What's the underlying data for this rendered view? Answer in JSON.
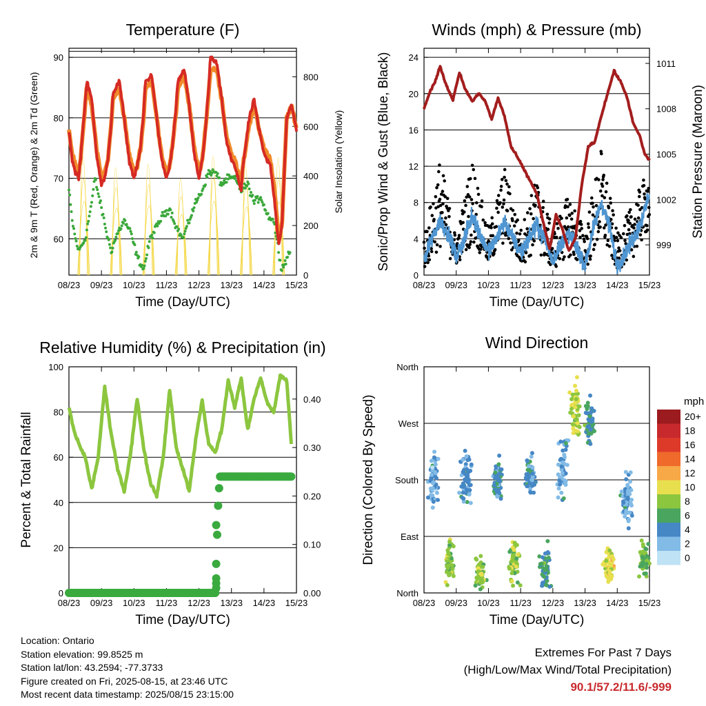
{
  "colors": {
    "temp_2m": "#d62a24",
    "temp_9m": "#f08a2a",
    "dewpoint": "#3aa83a",
    "solar": "#f4d84a",
    "wind": "#4f96d2",
    "gust": "#000000",
    "pressure": "#a31d1d",
    "rh": "#8cc63f",
    "precip": "#3aaa3f",
    "extremes_text": "#c8292c"
  },
  "time_ticks": [
    "08/23",
    "09/23",
    "10/23",
    "11/23",
    "12/23",
    "13/23",
    "14/23",
    "15/23"
  ],
  "charts": [
    {
      "id": "temperature",
      "type": "line",
      "title": "Temperature (F)",
      "xlabel": "Time (Day/UTC)",
      "ylabel_left": "2m & 9m T (Red, Orange) & 2m Td (Green)",
      "ylabel_right": "Solar Insolation (Yellow)",
      "yleft_ticks": [
        "60",
        "70",
        "80",
        "90"
      ],
      "yright_ticks": [
        "0",
        "200",
        "400",
        "600",
        "800"
      ],
      "ylim_left": [
        54,
        91.5
      ],
      "ylim_right": [
        0,
        915
      ],
      "grid": "horizontal",
      "series": [
        {
          "name": "2m T",
          "x": [
            0,
            0.1,
            0.2,
            0.3,
            0.35,
            0.55,
            0.7,
            0.85,
            1.0,
            1.1,
            1.2,
            1.3,
            1.35,
            1.55,
            1.7,
            1.85,
            2.0,
            2.1,
            2.2,
            2.3,
            2.35,
            2.55,
            2.7,
            2.85,
            3.0,
            3.1,
            3.2,
            3.3,
            3.35,
            3.55,
            3.7,
            3.85,
            4.0,
            4.1,
            4.2,
            4.3,
            4.35,
            4.55,
            4.7,
            4.85,
            5.0,
            5.1,
            5.2,
            5.3,
            5.35,
            5.55,
            5.7,
            5.85,
            6.0,
            6.2,
            6.35,
            6.45,
            6.55,
            6.7,
            6.85,
            7.0
          ],
          "y": [
            78,
            73,
            71,
            70,
            73,
            86,
            83,
            74,
            69,
            70,
            73,
            79,
            84,
            86,
            80,
            73,
            70,
            72,
            75,
            81,
            86,
            87,
            80,
            73,
            70,
            72,
            76,
            82,
            86,
            88,
            82,
            74,
            70,
            73,
            78,
            85,
            90,
            89,
            83,
            76,
            73,
            72,
            70,
            68,
            72,
            80,
            83,
            78,
            74,
            72,
            65,
            59,
            62,
            80,
            82,
            78
          ]
        },
        {
          "name": "9m T",
          "x": [
            0,
            0.1,
            0.2,
            0.3,
            0.35,
            0.55,
            0.7,
            0.85,
            1.0,
            1.1,
            1.2,
            1.3,
            1.35,
            1.55,
            1.7,
            1.85,
            2.0,
            2.1,
            2.2,
            2.3,
            2.35,
            2.55,
            2.7,
            2.85,
            3.0,
            3.1,
            3.2,
            3.3,
            3.35,
            3.55,
            3.7,
            3.85,
            4.0,
            4.1,
            4.2,
            4.3,
            4.35,
            4.55,
            4.7,
            4.85,
            5.0,
            5.1,
            5.2,
            5.3,
            5.35,
            5.55,
            5.7,
            5.85,
            6.0,
            6.2,
            6.35,
            6.45,
            6.55,
            6.7,
            6.85,
            7.0
          ],
          "y": [
            78,
            74,
            72,
            71,
            73,
            85,
            82,
            75,
            70,
            71,
            73,
            79,
            83,
            85,
            80,
            74,
            71,
            72,
            75,
            80,
            85,
            86,
            80,
            74,
            71,
            72,
            76,
            81,
            85,
            87,
            82,
            75,
            71,
            73,
            78,
            84,
            88,
            88,
            83,
            77,
            74,
            73,
            71,
            69,
            72,
            79,
            82,
            78,
            75,
            73,
            67,
            60,
            62,
            80,
            82,
            78
          ]
        },
        {
          "name": "2m Td",
          "x": [
            0,
            0.1,
            0.2,
            0.3,
            0.5,
            0.7,
            0.8,
            1.0,
            1.2,
            1.3,
            1.5,
            1.7,
            1.9,
            2.1,
            2.3,
            2.5,
            2.7,
            2.9,
            3.1,
            3.3,
            3.5,
            3.7,
            3.9,
            4.1,
            4.3,
            4.5,
            4.7,
            4.9,
            5.1,
            5.3,
            5.5,
            5.7,
            5.9,
            6.1,
            6.3,
            6.45,
            6.55,
            6.8
          ],
          "y": [
            68,
            63,
            60,
            58,
            60,
            66,
            70,
            65,
            60,
            58,
            61,
            63,
            61,
            57,
            55,
            60,
            62,
            64,
            65,
            62,
            60,
            63,
            66,
            68,
            71,
            71,
            69,
            70,
            70,
            68,
            69,
            66,
            67,
            64,
            63,
            58,
            55,
            58
          ]
        },
        {
          "name": "Solar",
          "peaks": [
            {
              "x": 0.45,
              "y": 895
            },
            {
              "x": 1.45,
              "y": 810
            },
            {
              "x": 2.45,
              "y": 840
            },
            {
              "x": 3.45,
              "y": 720
            },
            {
              "x": 4.45,
              "y": 900
            },
            {
              "x": 5.45,
              "y": 820
            },
            {
              "x": 6.45,
              "y": 890
            }
          ]
        }
      ]
    },
    {
      "id": "winds",
      "type": "scatter",
      "title": "Winds (mph) & Pressure (mb)",
      "xlabel": "Time (Day/UTC)",
      "ylabel_left": "Sonic/Prop Wind & Gust (Blue, Black)",
      "ylabel_right": "Station Pressure (Maroon)",
      "yleft_ticks": [
        "0",
        "4",
        "8",
        "12",
        "16",
        "20",
        "24"
      ],
      "yright_ticks": [
        "999",
        "1002",
        "1005",
        "1008",
        "1011"
      ],
      "ylim_left": [
        0,
        25
      ],
      "ylim_right": [
        997,
        1012
      ],
      "grid": "horizontal",
      "series": [
        {
          "name": "Pressure",
          "x": [
            0,
            0.2,
            0.35,
            0.5,
            0.7,
            0.9,
            1.1,
            1.3,
            1.5,
            1.7,
            1.9,
            2.1,
            2.3,
            2.5,
            2.7,
            2.9,
            3.1,
            3.3,
            3.5,
            3.7,
            3.9,
            4.1,
            4.3,
            4.5,
            4.7,
            4.9,
            5.1,
            5.3,
            5.5,
            5.7,
            5.9,
            6.1,
            6.3,
            6.5,
            6.7,
            6.85,
            7.0
          ],
          "y": [
            1008.0,
            1009.2,
            1009.8,
            1010.8,
            1009.5,
            1008.6,
            1010.4,
            1009.2,
            1008.5,
            1009.0,
            1008.5,
            1007.3,
            1008.7,
            1007.5,
            1005.5,
            1004.8,
            1004.0,
            1003.2,
            1002.4,
            1000.5,
            998.7,
            1001.0,
            1000.0,
            998.6,
            999.4,
            1003.0,
            1005.5,
            1005.8,
            1007.5,
            1009.0,
            1010.5,
            1009.8,
            1008.8,
            1007.0,
            1006.2,
            1005.0,
            1004.6
          ]
        },
        {
          "name": "Gust",
          "envelope": [
            {
              "x": 0.0,
              "lo": 0.5,
              "hi": 4.5
            },
            {
              "x": 0.5,
              "lo": 3.0,
              "hi": 13.0
            },
            {
              "x": 1.0,
              "lo": 1.0,
              "hi": 4.0
            },
            {
              "x": 1.5,
              "lo": 3.5,
              "hi": 13.0
            },
            {
              "x": 2.0,
              "lo": 1.0,
              "hi": 5.0
            },
            {
              "x": 2.5,
              "lo": 3.5,
              "hi": 12.0
            },
            {
              "x": 3.0,
              "lo": 1.0,
              "hi": 5.0
            },
            {
              "x": 3.5,
              "lo": 2.5,
              "hi": 11.0
            },
            {
              "x": 4.0,
              "lo": 0.5,
              "hi": 5.0
            },
            {
              "x": 4.5,
              "lo": 2.0,
              "hi": 9.0
            },
            {
              "x": 5.0,
              "lo": 0.5,
              "hi": 5.0
            },
            {
              "x": 5.5,
              "lo": 3.5,
              "hi": 14.0
            },
            {
              "x": 6.0,
              "lo": 0.5,
              "hi": 4.5
            },
            {
              "x": 6.5,
              "lo": 2.0,
              "hi": 8.0
            },
            {
              "x": 7.0,
              "lo": 5.0,
              "hi": 12.0
            }
          ]
        },
        {
          "name": "Wind",
          "x": [
            0.0,
            0.25,
            0.5,
            0.75,
            1.0,
            1.25,
            1.5,
            1.75,
            2.0,
            2.25,
            2.5,
            2.75,
            3.0,
            3.25,
            3.5,
            3.75,
            4.0,
            4.25,
            4.5,
            4.75,
            5.0,
            5.25,
            5.5,
            5.75,
            6.0,
            6.25,
            6.5,
            6.75,
            7.0
          ],
          "y": [
            1.5,
            4.0,
            6.0,
            4.5,
            2.0,
            4.0,
            6.5,
            4.5,
            2.5,
            4.0,
            6.0,
            4.0,
            2.5,
            4.0,
            5.5,
            4.0,
            1.5,
            3.5,
            4.5,
            3.0,
            1.0,
            5.0,
            8.0,
            5.5,
            1.0,
            2.5,
            4.0,
            6.0,
            9.0
          ]
        }
      ]
    },
    {
      "id": "humidity",
      "type": "line",
      "title": "Relative Humidity (%) & Precipitation (in)",
      "xlabel": "Time (Day/UTC)",
      "ylabel_left": "Percent & Total Rainfall",
      "yleft_ticks": [
        "0",
        "20",
        "40",
        "60",
        "80",
        "100"
      ],
      "yright_ticks": [
        "0.00",
        "0.10",
        "0.20",
        "0.30",
        "0.40"
      ],
      "ylim_left": [
        0,
        100
      ],
      "ylim_right": [
        0,
        0.4666
      ],
      "grid": "horizontal",
      "series": [
        {
          "name": "RH",
          "x": [
            0,
            0.15,
            0.3,
            0.5,
            0.7,
            0.9,
            1.1,
            1.3,
            1.5,
            1.7,
            1.9,
            2.1,
            2.3,
            2.5,
            2.7,
            2.9,
            3.1,
            3.3,
            3.5,
            3.7,
            3.9,
            4.1,
            4.3,
            4.5,
            4.7,
            4.9,
            5.1,
            5.3,
            5.5,
            5.7,
            5.9,
            6.1,
            6.3,
            6.5,
            6.7,
            6.85
          ],
          "y": [
            82,
            72,
            66,
            60,
            46,
            60,
            91,
            70,
            55,
            45,
            62,
            86,
            64,
            49,
            43,
            60,
            90,
            64,
            55,
            45,
            68,
            85,
            66,
            62,
            72,
            94,
            82,
            95,
            72,
            86,
            95,
            84,
            80,
            96,
            94,
            64
          ]
        },
        {
          "name": "Rainfall",
          "x": [
            0,
            4.5,
            4.55,
            4.6,
            4.65,
            7.0
          ],
          "y": [
            0.0,
            0.0,
            0.1,
            0.2,
            0.24,
            0.24
          ]
        }
      ]
    },
    {
      "id": "direction",
      "type": "scatter",
      "title": "Wind Direction",
      "xlabel": "Time (Day/UTC)",
      "ylabel_left": "Direction (Colored By Speed)",
      "yleft_ticks": [
        "North",
        "East",
        "South",
        "West",
        "North"
      ],
      "ylim_left": [
        0,
        360
      ],
      "grid": "horizontal",
      "legend": {
        "title": "mph",
        "placement": "right",
        "labels": [
          "20+",
          "18",
          "16",
          "14",
          "12",
          "10",
          "8",
          "6",
          "4",
          "2",
          "0"
        ],
        "colors": [
          "#9b1b1e",
          "#c8292c",
          "#dd3a2a",
          "#ef6a2b",
          "#f7a847",
          "#e8df4e",
          "#8cc63f",
          "#4aa55f",
          "#4687c5",
          "#82bbe6",
          "#bfe2f5"
        ]
      },
      "clusters": [
        {
          "x": 0.3,
          "dir": 180,
          "spread": 60,
          "speed": 3
        },
        {
          "x": 0.8,
          "dir": 50,
          "spread": 50,
          "speed": 8
        },
        {
          "x": 1.3,
          "dir": 180,
          "spread": 60,
          "speed": 4
        },
        {
          "x": 1.75,
          "dir": 30,
          "spread": 40,
          "speed": 8
        },
        {
          "x": 2.3,
          "dir": 180,
          "spread": 50,
          "speed": 4
        },
        {
          "x": 2.8,
          "dir": 50,
          "spread": 50,
          "speed": 8
        },
        {
          "x": 3.3,
          "dir": 185,
          "spread": 50,
          "speed": 4
        },
        {
          "x": 3.75,
          "dir": 40,
          "spread": 50,
          "speed": 5
        },
        {
          "x": 4.3,
          "dir": 200,
          "spread": 80,
          "speed": 3
        },
        {
          "x": 4.7,
          "dir": 290,
          "spread": 70,
          "speed": 9
        },
        {
          "x": 5.15,
          "dir": 270,
          "spread": 50,
          "speed": 5
        },
        {
          "x": 5.75,
          "dir": 45,
          "spread": 40,
          "speed": 10
        },
        {
          "x": 6.3,
          "dir": 150,
          "spread": 60,
          "speed": 3
        },
        {
          "x": 6.85,
          "dir": 55,
          "spread": 40,
          "speed": 7
        }
      ]
    }
  ],
  "info": {
    "location": "Location: Ontario",
    "elevation": "Station elevation: 99.8525 m",
    "latlon": "Station lat/lon: 43.2594; -77.3733",
    "created": "Figure created on Fri, 2025-08-15, at 23:46 UTC",
    "recent": "Most recent data timestamp: 2025/08/15 23:15:00"
  },
  "extremes": {
    "heading": "Extremes For Past 7 Days",
    "subheading": "(High/Low/Max Wind/Total Precipitation)",
    "values": "90.1/57.2/11.6/-999"
  }
}
